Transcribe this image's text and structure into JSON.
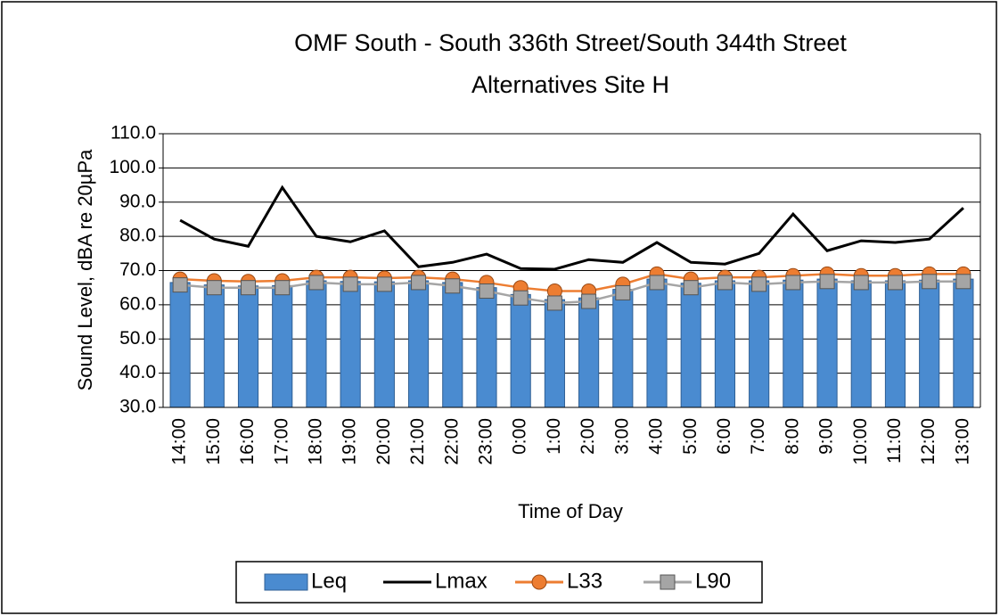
{
  "chart_data": {
    "type": "bar_line",
    "title": "OMF South - South 336th Street/South 344th Street",
    "subtitle": "Alternatives Site H",
    "x_label": "Time of Day",
    "y_label": "Sound Level, dBA re 20µPa",
    "categories": [
      "14:00",
      "15:00",
      "16:00",
      "17:00",
      "18:00",
      "19:00",
      "20:00",
      "21:00",
      "22:00",
      "23:00",
      "0:00",
      "1:00",
      "2:00",
      "3:00",
      "4:00",
      "5:00",
      "6:00",
      "7:00",
      "8:00",
      "9:00",
      "10:00",
      "11:00",
      "12:00",
      "13:00"
    ],
    "series": [
      {
        "name": "Leq",
        "kind": "bar",
        "color": "#4a8bd0",
        "values": [
          66.5,
          65.8,
          65.5,
          65.6,
          67,
          66.8,
          66.7,
          67,
          66.5,
          65,
          63,
          61.5,
          62,
          64.5,
          67.5,
          66.3,
          67,
          67,
          67.2,
          67.5,
          67,
          67,
          67.2,
          67.5
        ]
      },
      {
        "name": "Lmax",
        "kind": "line",
        "color": "#000000",
        "values": [
          84.7,
          79.2,
          77.1,
          94.3,
          80,
          78.4,
          81.6,
          71.1,
          72.4,
          74.8,
          70.6,
          70.4,
          73.2,
          72.4,
          78.2,
          72.4,
          71.9,
          75,
          86.5,
          75.8,
          78.7,
          78.2,
          79.2,
          88.3
        ]
      },
      {
        "name": "L33",
        "kind": "line",
        "marker": "circle",
        "color": "#ed7d31",
        "values": [
          67.5,
          67,
          66.8,
          67,
          68,
          68,
          67.8,
          68,
          67.5,
          66.5,
          65,
          64,
          64,
          66,
          69,
          67.5,
          68,
          68,
          68.5,
          69,
          68.5,
          68.5,
          69,
          69
        ]
      },
      {
        "name": "L90",
        "kind": "line",
        "marker": "square",
        "color": "#a5a5a5",
        "values": [
          65.8,
          65,
          65,
          65,
          66.5,
          66,
          66,
          66.5,
          65.5,
          64,
          62,
          60.5,
          61,
          63.5,
          66.5,
          65,
          66.5,
          66,
          66.5,
          66.8,
          66.5,
          66.5,
          66.8,
          66.8
        ]
      }
    ],
    "ylim": [
      30,
      110
    ],
    "yticks": [
      {
        "value": 30,
        "label": "30.0"
      },
      {
        "value": 40,
        "label": "40.0"
      },
      {
        "value": 50,
        "label": "50.0"
      },
      {
        "value": 60,
        "label": "60.0"
      },
      {
        "value": 70,
        "label": "70.0"
      },
      {
        "value": 80,
        "label": "80.0"
      },
      {
        "value": 90,
        "label": "90.0"
      },
      {
        "value": 100,
        "label": "100.0"
      },
      {
        "value": 110,
        "label": "110.0"
      }
    ],
    "grid": true,
    "legend": "bottom"
  }
}
